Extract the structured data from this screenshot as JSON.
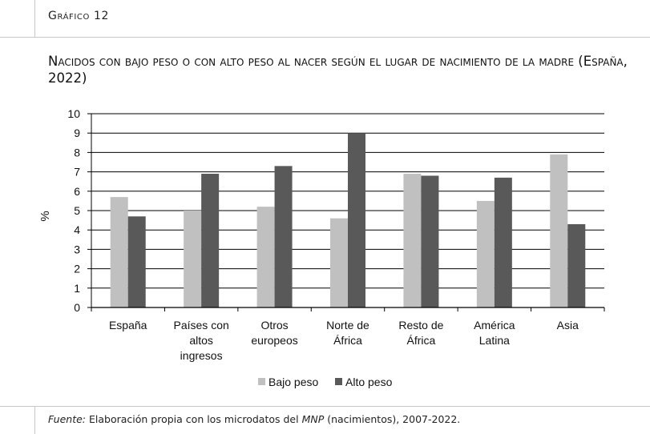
{
  "header": {
    "figure_label": "Gráfico 12"
  },
  "chart_data": {
    "type": "bar",
    "title": "Nacidos con bajo peso o con alto peso al nacer según el lugar de nacimiento de la madre (España, 2022)",
    "ylabel": "%",
    "ylim": [
      0,
      10
    ],
    "yticks": [
      0,
      1,
      2,
      3,
      4,
      5,
      6,
      7,
      8,
      9,
      10
    ],
    "grid": true,
    "legend_position": "bottom-center",
    "categories": [
      [
        "España"
      ],
      [
        "Países con",
        "altos",
        "ingresos"
      ],
      [
        "Otros",
        "europeos"
      ],
      [
        "Norte de",
        "África"
      ],
      [
        "Resto de",
        "África"
      ],
      [
        "América",
        "Latina"
      ],
      [
        "Asia"
      ]
    ],
    "series": [
      {
        "name": "Bajo peso",
        "color": "#c0c0c0",
        "values": [
          5.7,
          5.0,
          5.2,
          4.6,
          6.9,
          5.5,
          7.9
        ]
      },
      {
        "name": "Alto peso",
        "color": "#595959",
        "values": [
          4.7,
          6.9,
          7.3,
          9.0,
          6.8,
          6.7,
          4.3
        ]
      }
    ]
  },
  "footer": {
    "source_label": "Fuente:",
    "source_text_1": " Elaboración propia con los microdatos del ",
    "source_em": "MNP",
    "source_text_2": " (nacimientos), 2007-2022."
  }
}
